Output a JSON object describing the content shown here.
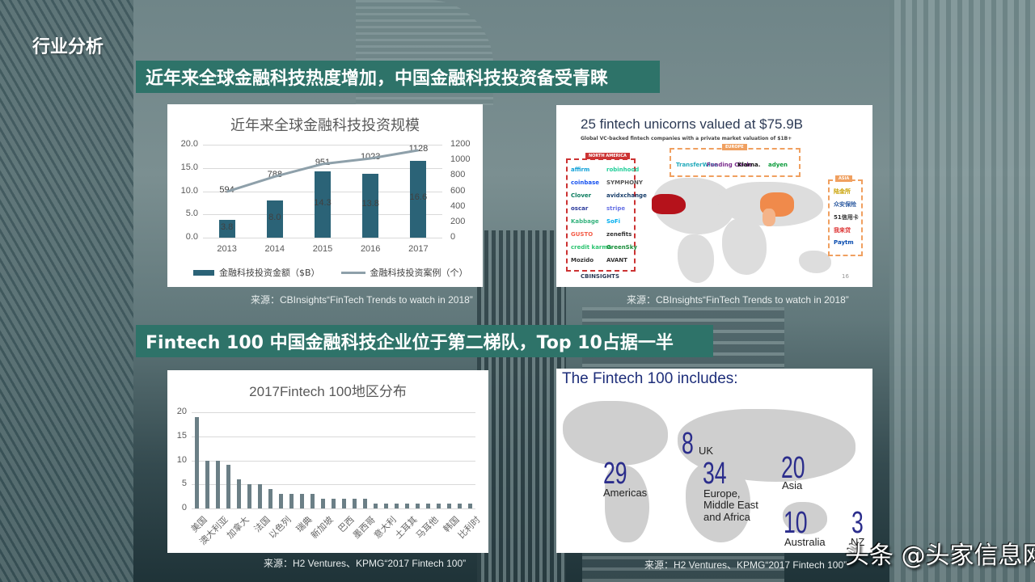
{
  "page": {
    "section_title": "行业分析",
    "banner_1": "近年来全球金融科技热度增加，中国金融科技投资备受青睐",
    "banner_2": "Fintech 100 中国金融科技企业位于第二梯队，Top 10占据一半",
    "watermark": "头条 @头家信息网"
  },
  "sources": {
    "card_1": "来源：CBInsights“FinTech Trends to watch in 2018”",
    "card_2": "来源：CBInsights“FinTech Trends to watch in 2018”",
    "card_3": "来源：H2 Ventures、KPMG“2017 Fintech 100”",
    "card_4": "来源：H2 Ventures、KPMG“2017 Fintech 100”"
  },
  "colors": {
    "banner": "#2e7369",
    "bar_primary": "#2b6377",
    "line_secondary": "#8ea0aa",
    "bar_region": "#6b7f86",
    "fintech_blue": "#2b2d8c"
  },
  "chart_data": [
    {
      "type": "bar",
      "title": "近年来全球金融科技投资规模",
      "categories": [
        "2013",
        "2014",
        "2015",
        "2016",
        "2017"
      ],
      "series": [
        {
          "name": "金融科技投资金额（$B）",
          "type": "bar",
          "axis": "left",
          "values": [
            3.8,
            8.0,
            14.3,
            13.8,
            16.6
          ]
        },
        {
          "name": "金融科技投资案例（个）",
          "type": "line",
          "axis": "right",
          "values": [
            594,
            788,
            951,
            1023,
            1128
          ]
        }
      ],
      "y_left": {
        "ticks": [
          "0.0",
          "5.0",
          "10.0",
          "15.0",
          "20.0"
        ],
        "ylim": [
          0,
          20
        ]
      },
      "y_right": {
        "ticks": [
          "0",
          "200",
          "400",
          "600",
          "800",
          "1000",
          "1200"
        ],
        "ylim": [
          0,
          1200
        ]
      },
      "legend_position": "bottom",
      "grid": true
    },
    {
      "type": "bar",
      "title": "2017Fintech 100地区分布",
      "categories": [
        "美国",
        "",
        "澳大利亚",
        "",
        "加拿大",
        "",
        "法国",
        "",
        "以色列",
        "",
        "瑞典",
        "",
        "新加坡",
        "",
        "巴西",
        "",
        "墨西哥",
        "",
        "意大利",
        "",
        "土耳其",
        "",
        "马耳他",
        "",
        "韩国",
        "",
        "比利时"
      ],
      "visible_tick_labels": [
        "美国",
        "澳大利亚",
        "加拿大",
        "法国",
        "以色列",
        "瑞典",
        "新加坡",
        "巴西",
        "墨西哥",
        "意大利",
        "土耳其",
        "马耳他",
        "韩国",
        "比利时"
      ],
      "values": [
        19,
        10,
        10,
        9,
        6,
        5,
        5,
        4,
        3,
        3,
        3,
        3,
        2,
        2,
        2,
        2,
        2,
        1,
        1,
        1,
        1,
        1,
        1,
        1,
        1,
        1,
        1
      ],
      "y_ticks": [
        "0",
        "5",
        "10",
        "15",
        "20"
      ],
      "ylim": [
        0,
        20
      ],
      "grid": true
    }
  ],
  "unicorns": {
    "title": "25 fintech unicorns valued at $75.9B",
    "subtitle": "Global VC-backed fintech companies with a private market valuation of $1B+",
    "regions": {
      "north_america": "NORTH AMERICA",
      "europe": "EUROPE",
      "asia": "ASIA"
    },
    "na_logos": [
      "affirm",
      "robinhood",
      "coinbase",
      "SYMPHONY",
      "Clover",
      "avidxchange",
      "oscar",
      "stripe",
      "Kabbage",
      "SoFi",
      "GUSTO",
      "zenefits",
      "credit karma",
      "GreenSky",
      "Mozido",
      "AVANT"
    ],
    "eu_logos": [
      "TransferWise",
      "Funding Circle",
      "Klarna.",
      "adyen"
    ],
    "asia_logos": [
      "陆金所",
      "众安保险",
      "51信用卡",
      "我来贷",
      "Paytm"
    ],
    "footer_logo": "CBINSIGHTS",
    "page_number": "16"
  },
  "fintech100_map": {
    "title": "The Fintech 100 includes:",
    "regions": [
      {
        "count": "29",
        "label": "Americas"
      },
      {
        "count": "8",
        "label": "UK"
      },
      {
        "count": "34",
        "label": "Europe, Middle East and Africa"
      },
      {
        "count": "20",
        "label": "Asia"
      },
      {
        "count": "10",
        "label": "Australia"
      },
      {
        "count": "3",
        "label": "NZ"
      }
    ]
  }
}
